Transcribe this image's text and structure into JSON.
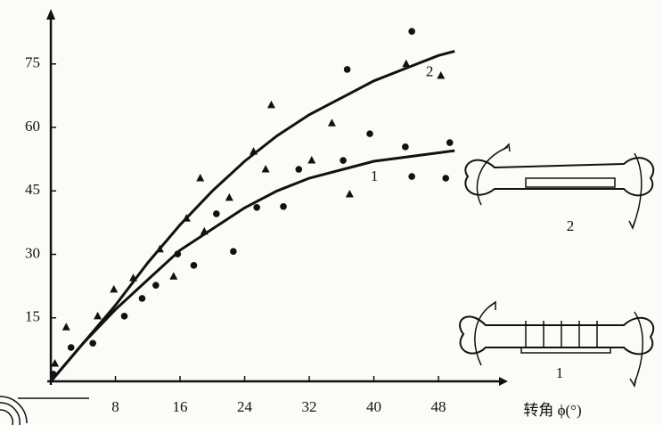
{
  "chart_data": {
    "type": "scatter",
    "x_label": "转角 ϕ(°)",
    "xlim": [
      -1,
      55.5
    ],
    "ylim": [
      0,
      88
    ],
    "xticks": [
      8,
      16,
      24,
      32,
      40,
      48
    ],
    "yticks": [
      15,
      30,
      45,
      60,
      75
    ],
    "series": [
      {
        "marker": "triangle",
        "color": "#111111",
        "x": [
          0.5,
          1.9,
          5.8,
          7.8,
          10.2,
          13.5,
          15.2,
          16.8,
          18.5,
          19,
          22.1,
          25.1,
          26.6,
          27.3,
          32.3,
          34.8,
          37,
          44,
          48.3
        ],
        "values": [
          4.2,
          12.8,
          15.4,
          21.7,
          24.4,
          31.2,
          24.8,
          38.5,
          48,
          35.4,
          43.4,
          54.3,
          50.1,
          65.3,
          52.2,
          61,
          44.2,
          75,
          72.2
        ]
      },
      {
        "marker": "dot",
        "color": "#111111",
        "x": [
          0.3,
          2.5,
          5.2,
          9.1,
          11.3,
          13,
          15.7,
          17.7,
          20.5,
          22.6,
          25.5,
          28.8,
          30.7,
          36.2,
          36.7,
          39.5,
          43.9,
          44.7,
          44.7,
          48.9,
          49.4
        ],
        "values": [
          1.7,
          8,
          9,
          15.4,
          19.6,
          22.7,
          30.1,
          27.4,
          39.6,
          30.7,
          41.1,
          41.3,
          50.1,
          52.2,
          73.7,
          58.5,
          55.4,
          48.4,
          82.7,
          48,
          56.4
        ]
      },
      {
        "name": "2",
        "marker": "curve",
        "color": "#111111",
        "x": [
          0,
          4,
          8,
          12,
          16,
          20,
          24,
          28,
          32,
          36,
          40,
          44,
          48,
          50
        ],
        "values": [
          0,
          9,
          18,
          28,
          37,
          45,
          52,
          58,
          63,
          67,
          71,
          74,
          77,
          78
        ]
      },
      {
        "name": "1",
        "marker": "curve",
        "color": "#111111",
        "x": [
          0,
          4,
          8,
          12,
          16,
          20,
          24,
          28,
          32,
          36,
          40,
          44,
          48,
          50
        ],
        "values": [
          0,
          9,
          17,
          24,
          31,
          36,
          41,
          45,
          48,
          50,
          52,
          53,
          54,
          54.5
        ]
      }
    ],
    "insets": [
      {
        "label": "2"
      },
      {
        "label": "1"
      }
    ]
  }
}
